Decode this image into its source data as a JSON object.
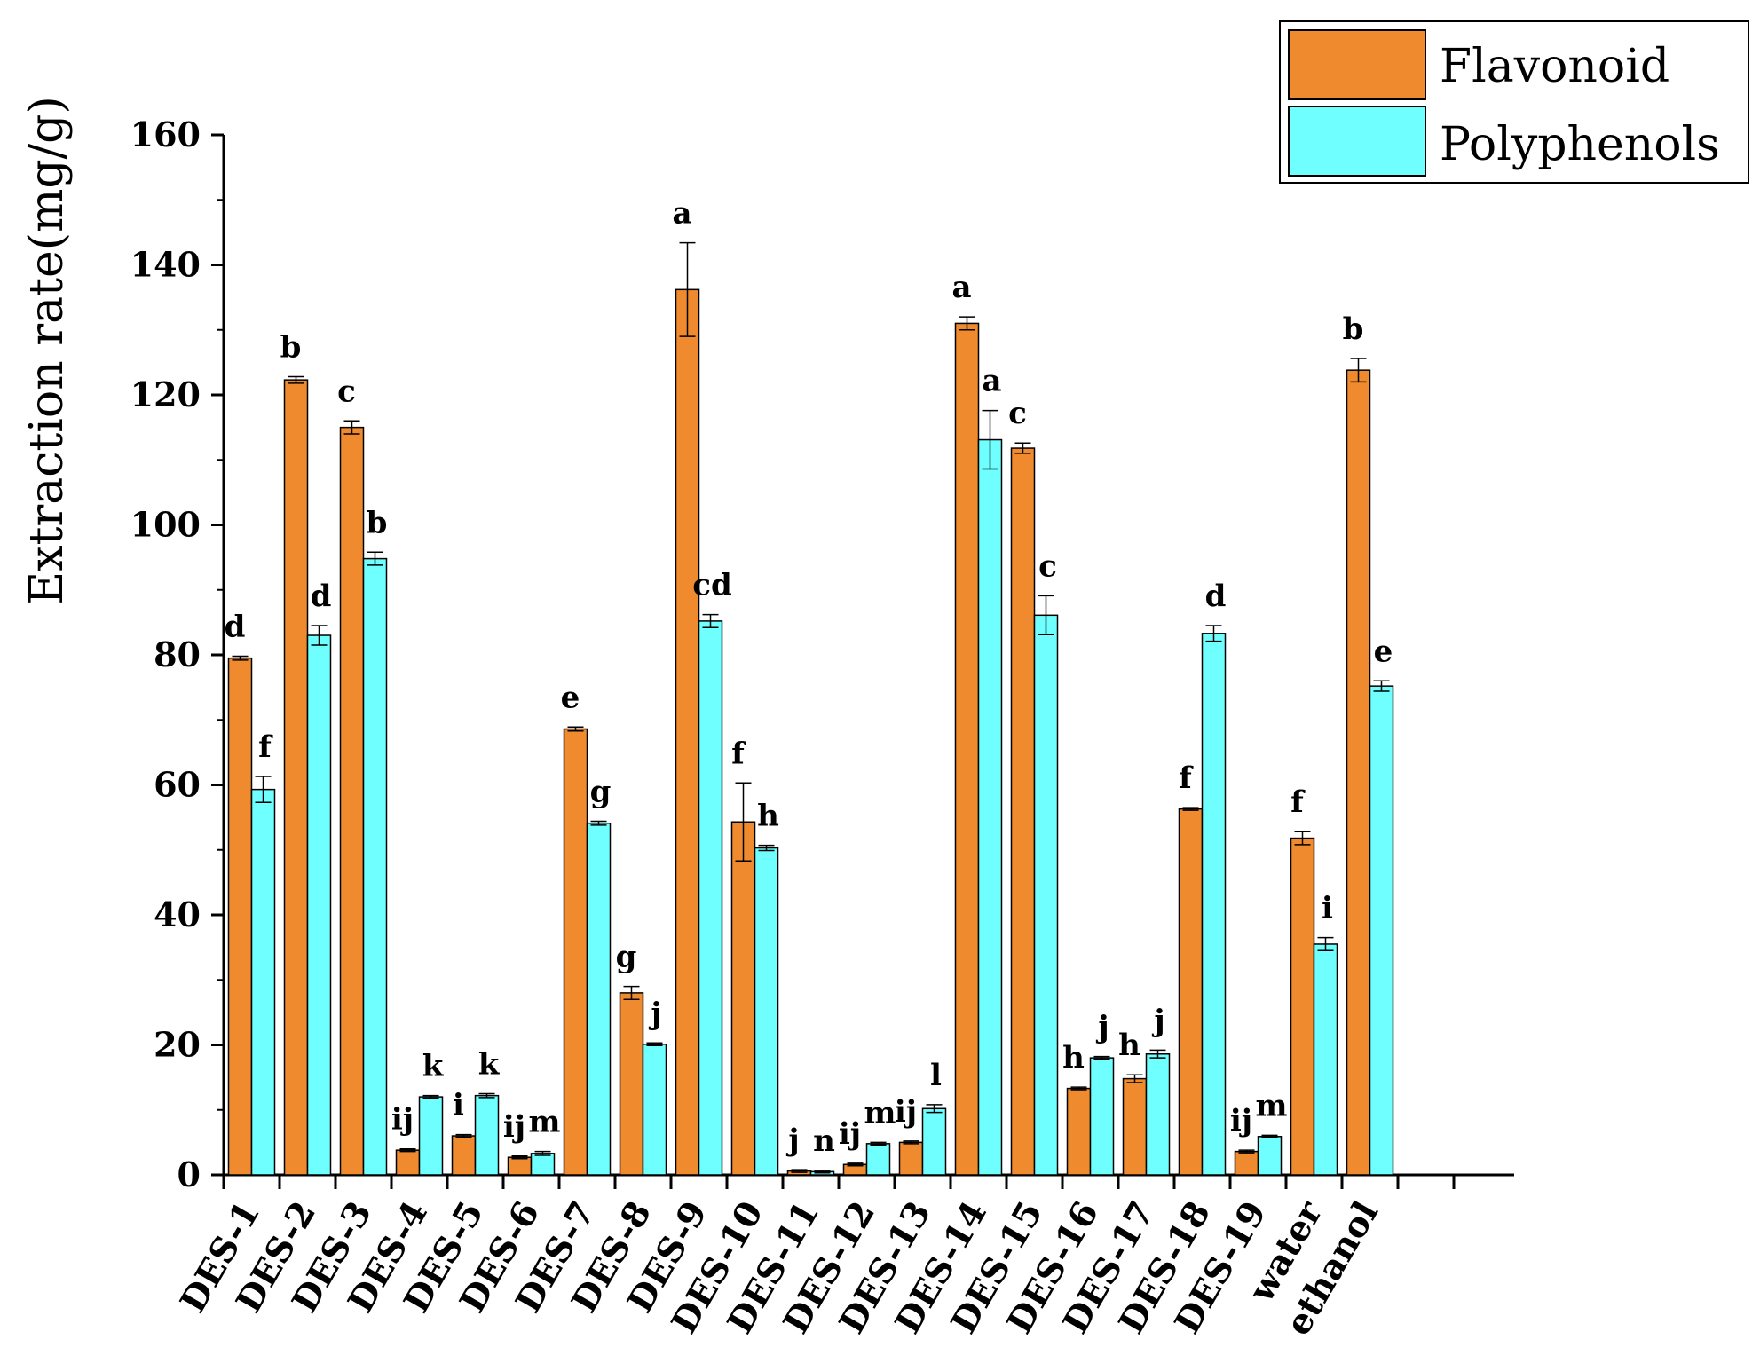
{
  "chart_data": {
    "type": "bar",
    "title": "",
    "xlabel": "",
    "ylabel": "Extraction rate(mg/g)",
    "ylim": [
      0,
      160
    ],
    "yticks": [
      "0",
      "20",
      "40",
      "60",
      "80",
      "100",
      "120",
      "140",
      "160"
    ],
    "categories": [
      "DES-1",
      "DES-2",
      "DES-3",
      "DES-4",
      "DES-5",
      "DES-6",
      "DES-7",
      "DES-8",
      "DES-9",
      "DES-10",
      "DES-11",
      "DES-12",
      "DES-13",
      "DES-14",
      "DES-15",
      "DES-16",
      "DES-17",
      "DES-18",
      "DES-19",
      "water",
      "ethanol"
    ],
    "series": [
      {
        "name": "Flavonoid",
        "color": "#F08A2E",
        "values": [
          79.5,
          122.3,
          115,
          3.8,
          6,
          2.7,
          68.6,
          28,
          136.2,
          54.3,
          0.6,
          1.6,
          5,
          131,
          111.8,
          13.3,
          14.8,
          56.3,
          3.6,
          51.8,
          123.8
        ],
        "errors": [
          0.3,
          0.5,
          1.0,
          0.2,
          0.2,
          0.2,
          0.3,
          1.0,
          7.2,
          6.0,
          0.2,
          0.2,
          0.2,
          1.0,
          0.8,
          0.2,
          0.6,
          0.2,
          0.2,
          1.0,
          1.8
        ],
        "labels": [
          "d",
          "b",
          "c",
          "ij",
          "i",
          "ij",
          "e",
          "g",
          "a",
          "f",
          "j",
          "ij",
          "ij",
          "a",
          "c",
          "h",
          "h",
          "f",
          "ij",
          "f",
          "b"
        ]
      },
      {
        "name": "Polyphenols",
        "color": "#6FFFFF",
        "values": [
          59.3,
          83,
          94.8,
          12,
          12.2,
          3.3,
          54.1,
          20.1,
          85.2,
          50.3,
          0.5,
          4.8,
          10.2,
          113.1,
          86.1,
          18,
          18.6,
          83.3,
          5.9,
          35.5,
          75.2
        ],
        "errors": [
          2.0,
          1.5,
          1.0,
          0.2,
          0.3,
          0.3,
          0.3,
          0.2,
          1.0,
          0.4,
          0.2,
          0.2,
          0.6,
          4.5,
          3.0,
          0.2,
          0.6,
          1.2,
          0.2,
          1.0,
          0.8
        ],
        "labels": [
          "f",
          "d",
          "b",
          "k",
          "k",
          "m",
          "g",
          "j",
          "cd",
          "h",
          "n",
          "m",
          "l",
          "a",
          "c",
          "j",
          "j",
          "d",
          "m",
          "i",
          "e"
        ]
      }
    ],
    "legend_position": "top-right",
    "grid": false
  }
}
